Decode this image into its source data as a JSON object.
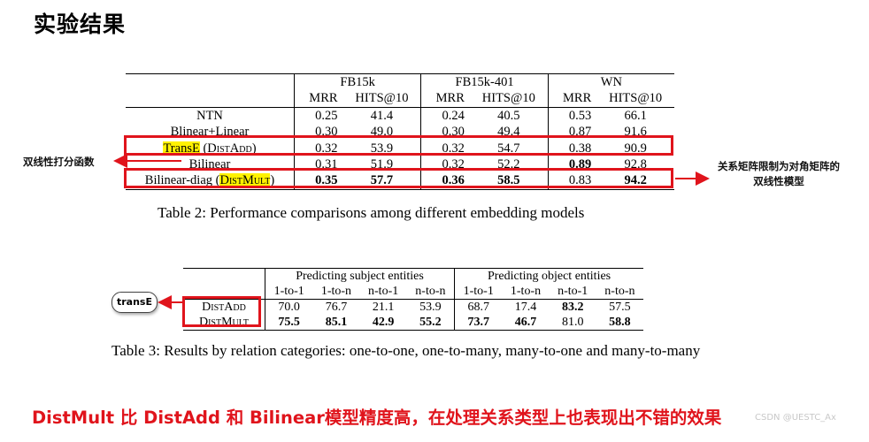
{
  "title": "实验结果",
  "table2": {
    "groups": [
      "FB15k",
      "FB15k-401",
      "WN"
    ],
    "subheaders": [
      "MRR",
      "HITS@10",
      "MRR",
      "HITS@10",
      "MRR",
      "HITS@10"
    ],
    "rows": [
      {
        "model": "NTN",
        "values": [
          "0.25",
          "41.4",
          "0.24",
          "40.5",
          "0.53",
          "66.1"
        ]
      },
      {
        "model": "Blinear+Linear",
        "values": [
          "0.30",
          "49.0",
          "0.30",
          "49.4",
          "0.87",
          "91.6"
        ]
      },
      {
        "model_hl": "TransE",
        "model_rest": " (",
        "model_sc": "DistAdd",
        "model_end": ")",
        "values": [
          "0.32",
          "53.9",
          "0.32",
          "54.7",
          "0.38",
          "90.9"
        ]
      },
      {
        "model": "Bilinear",
        "values": [
          "0.31",
          "51.9",
          "0.32",
          "52.2",
          "0.89",
          "92.8"
        ]
      },
      {
        "model_pre": "Bilinear-diag (",
        "model_sc": "DistMult",
        "model_end": ")",
        "values": [
          "0.35",
          "57.7",
          "0.36",
          "58.5",
          "0.83",
          "94.2"
        ]
      }
    ],
    "caption": "Table 2: Performance comparisons among different embedding models"
  },
  "table3": {
    "groups": [
      "Predicting subject entities",
      "Predicting object entities"
    ],
    "subheaders": [
      "1-to-1",
      "1-to-n",
      "n-to-1",
      "n-to-n",
      "1-to-1",
      "1-to-n",
      "n-to-1",
      "n-to-n"
    ],
    "rows": [
      {
        "model": "DistAdd",
        "values": [
          "70.0",
          "76.7",
          "21.1",
          "53.9",
          "68.7",
          "17.4",
          "83.2",
          "57.5"
        ]
      },
      {
        "model": "DistMult",
        "values": [
          "75.5",
          "85.1",
          "42.9",
          "55.2",
          "73.7",
          "46.7",
          "81.0",
          "58.8"
        ]
      }
    ],
    "caption": "Table 3: Results by relation categories: one-to-one, one-to-many, many-to-one and many-to-many"
  },
  "annotations": {
    "left_note": "双线性打分函数",
    "right_note_line1": "关系矩阵限制为对角矩阵的",
    "right_note_line2": "双线性模型",
    "pill": "transE"
  },
  "bottom_text": "DistMult 比 DistAdd 和 Bilinear模型精度高，在处理关系类型上也表现出不错的效果",
  "watermark": "CSDN @UESTC_Ax",
  "colors": {
    "highlight_red": "#e0141c",
    "highlight_yellow": "#fff200"
  }
}
